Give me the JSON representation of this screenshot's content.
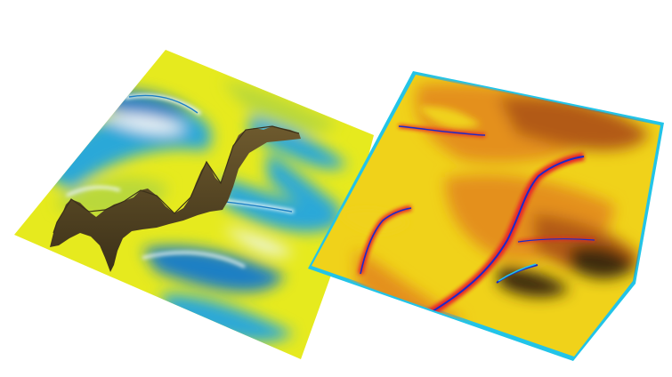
{
  "scene": {
    "background": "#ffffff",
    "left_surface": {
      "palette": {
        "yellow": "#e6ea1e",
        "lime": "#b9d83a",
        "cyan": "#2aa8d8",
        "blue": "#1b7fc4",
        "white": "#eef6f8",
        "brown": "#6e5a2e",
        "dark_brown": "#3b3018"
      },
      "features": [
        "ridge-streak",
        "ridge-streak",
        "ridge-streak",
        "ridge-streak",
        "cliff-wall"
      ]
    },
    "right_surface": {
      "palette": {
        "yellow": "#f0d21a",
        "orange": "#e4901a",
        "dark_orange": "#b25a12",
        "shadow": "#3e2a10",
        "red": "#e8202a",
        "blue": "#1a2cc8",
        "cyan_edge": "#22c4e8"
      },
      "features": [
        "channel-red",
        "channel-red",
        "channel-red",
        "channel-blue",
        "channel-blue",
        "channel-blue"
      ]
    }
  }
}
